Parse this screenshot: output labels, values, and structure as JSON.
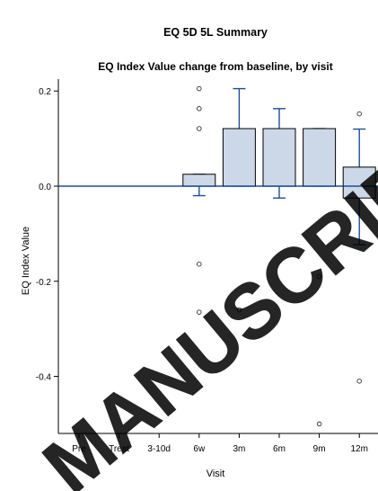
{
  "header": {
    "title": "EQ 5D 5L Summary",
    "subtitle": "EQ Index Value change from baseline, by visit"
  },
  "watermark": {
    "text": "MANUSCRIPT"
  },
  "chart_data": {
    "type": "box",
    "title": "EQ 5D 5L Summary",
    "subtitle": "EQ Index Value change from baseline, by visit",
    "xlabel": "Visit",
    "ylabel": "EQ Index Value",
    "categories": [
      "Pre",
      "Treat",
      "3-10d",
      "6w",
      "3m",
      "6m",
      "9m",
      "12m"
    ],
    "yticks": [
      -0.4,
      -0.2,
      0.0,
      0.2
    ],
    "ytick_labels": [
      "-0.4",
      "-0.2",
      "0.0",
      "0.2"
    ],
    "ylim": [
      -0.52,
      0.225
    ],
    "grid": false,
    "boxes": [
      {
        "category": "Pre",
        "whisker_low": 0,
        "q1": 0,
        "median": 0,
        "q3": 0,
        "whisker_high": 0,
        "outliers": []
      },
      {
        "category": "Treat",
        "whisker_low": 0,
        "q1": 0,
        "median": 0,
        "q3": 0,
        "whisker_high": 0,
        "outliers": []
      },
      {
        "category": "3-10d",
        "whisker_low": 0,
        "q1": 0,
        "median": 0,
        "q3": 0,
        "whisker_high": 0,
        "outliers": []
      },
      {
        "category": "6w",
        "whisker_low": -0.02,
        "q1": 0,
        "median": 0,
        "q3": 0.025,
        "whisker_high": 0.025,
        "outliers": [
          0.205,
          0.163,
          0.121,
          -0.164,
          -0.265
        ]
      },
      {
        "category": "3m",
        "whisker_low": 0,
        "q1": 0,
        "median": 0,
        "q3": 0.121,
        "whisker_high": 0.205,
        "outliers": [
          -0.26
        ]
      },
      {
        "category": "6m",
        "whisker_low": -0.025,
        "q1": 0,
        "median": 0,
        "q3": 0.121,
        "whisker_high": 0.163,
        "outliers": []
      },
      {
        "category": "9m",
        "whisker_low": 0,
        "q1": 0,
        "median": 0,
        "q3": 0.121,
        "whisker_high": 0.121,
        "outliers": [
          -0.19,
          -0.5
        ]
      },
      {
        "category": "12m",
        "whisker_low": -0.123,
        "q1": -0.025,
        "median": 0,
        "q3": 0.04,
        "whisker_high": 0.12,
        "outliers": [
          0.152,
          -0.41
        ]
      }
    ],
    "colors": {
      "box_fill": "#ccd8e8",
      "whisker": "#1f4e9c",
      "median": "#1f4e9c",
      "box_edge": "#000000"
    }
  }
}
